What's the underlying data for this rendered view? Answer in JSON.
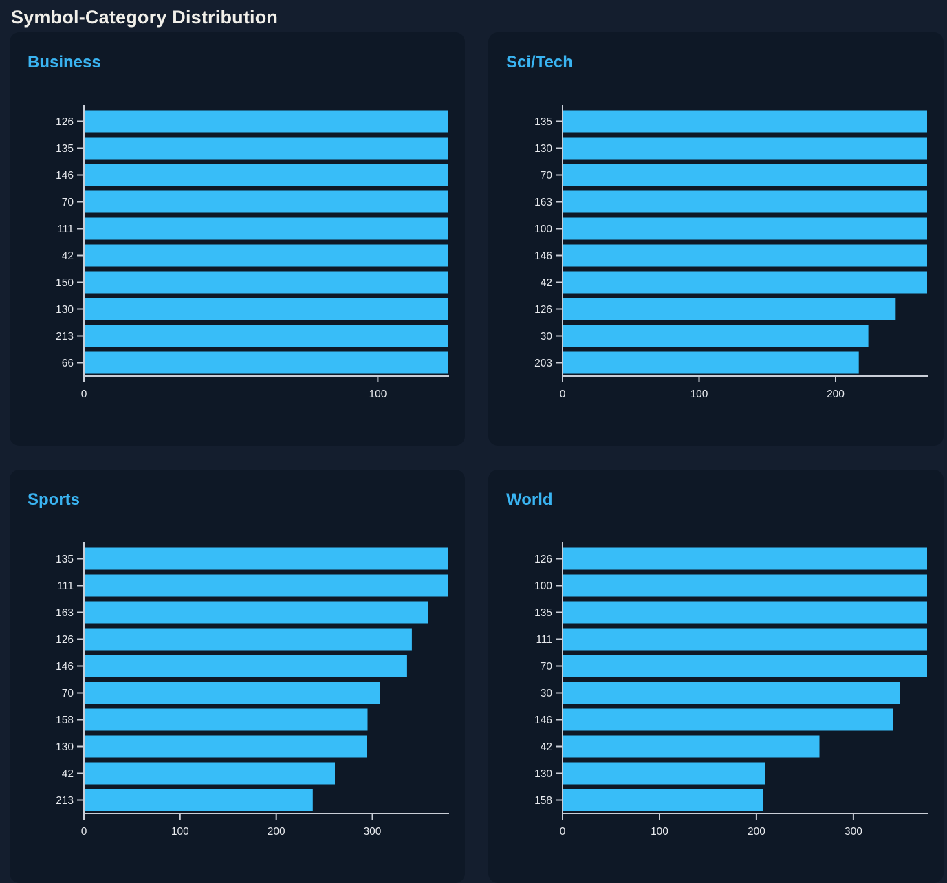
{
  "page": {
    "title": "Symbol-Category Distribution"
  },
  "colors": {
    "page_background": "#141e2e",
    "panel_background": "#0e1826",
    "bar": "#38bdf8",
    "panel_title": "#3ab4f2",
    "page_title": "#f1efe9",
    "axis": "#c9ced7",
    "tick_label": "#e8eaee"
  },
  "chart_data": [
    {
      "type": "bar",
      "orientation": "horizontal",
      "title": "Business",
      "categories": [
        "126",
        "135",
        "146",
        "70",
        "111",
        "42",
        "150",
        "130",
        "213",
        "66"
      ],
      "values": [
        124,
        124,
        124,
        124,
        124,
        124,
        124,
        124,
        124,
        124
      ],
      "xticks": [
        0,
        100
      ],
      "xlim": [
        0,
        124
      ],
      "xlabel": "",
      "ylabel": "",
      "grid": false,
      "legend": "none"
    },
    {
      "type": "bar",
      "orientation": "horizontal",
      "title": "Sci/Tech",
      "categories": [
        "135",
        "130",
        "70",
        "163",
        "100",
        "146",
        "42",
        "126",
        "30",
        "203"
      ],
      "values": [
        267,
        267,
        267,
        267,
        267,
        267,
        267,
        244,
        224,
        217
      ],
      "xticks": [
        0,
        100,
        200
      ],
      "xlim": [
        0,
        267
      ],
      "xlabel": "",
      "ylabel": "",
      "grid": false,
      "legend": "none"
    },
    {
      "type": "bar",
      "orientation": "horizontal",
      "title": "Sports",
      "categories": [
        "135",
        "111",
        "163",
        "126",
        "146",
        "70",
        "158",
        "130",
        "42",
        "213"
      ],
      "values": [
        379,
        379,
        358,
        341,
        336,
        308,
        295,
        294,
        261,
        238
      ],
      "xticks": [
        0,
        100,
        200,
        300
      ],
      "xlim": [
        0,
        379
      ],
      "xlabel": "",
      "ylabel": "",
      "grid": false,
      "legend": "none"
    },
    {
      "type": "bar",
      "orientation": "horizontal",
      "title": "World",
      "categories": [
        "126",
        "100",
        "135",
        "111",
        "70",
        "30",
        "146",
        "42",
        "130",
        "158"
      ],
      "values": [
        376,
        376,
        376,
        376,
        376,
        348,
        341,
        265,
        209,
        207
      ],
      "xticks": [
        0,
        100,
        200,
        300
      ],
      "xlim": [
        0,
        376
      ],
      "xlabel": "",
      "ylabel": "",
      "grid": false,
      "legend": "none"
    }
  ]
}
